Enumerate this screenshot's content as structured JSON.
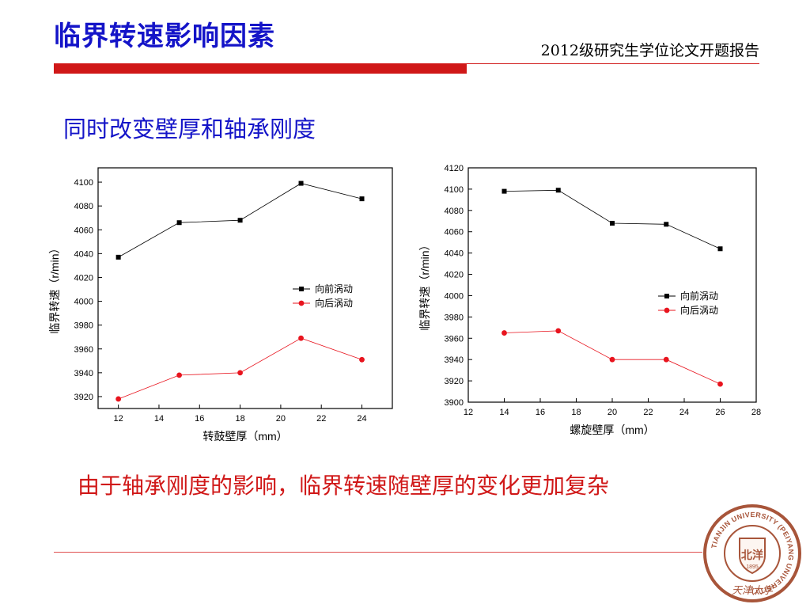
{
  "slide": {
    "title": "临界转速影响因素",
    "report_title": "2012级研究生学位论文开题报告",
    "section_heading": "同时改变壁厚和轴承刚度",
    "conclusion": "由于轴承刚度的影响，临界转速随壁厚的变化更加复杂"
  },
  "seal": {
    "outer_text": "TIANJIN UNIVERSITY (PEIYANG UNIVERSITY)",
    "center_text": "北洋",
    "year": "1895",
    "bottom_text": "天津大学",
    "color": "#a8553a"
  },
  "colors": {
    "title_blue": "#1414c8",
    "accent_red": "#d01818",
    "series_black": "#000000",
    "series_red": "#e8141e"
  },
  "chart_data": [
    {
      "type": "line",
      "xlabel": "转鼓壁厚（mm）",
      "ylabel": "临界转速（r/min）",
      "xlim": [
        11,
        25.5
      ],
      "ylim": [
        3910,
        4112
      ],
      "xticks": [
        12,
        14,
        16,
        18,
        20,
        22,
        24
      ],
      "yticks": [
        3920,
        3940,
        3960,
        3980,
        4000,
        4020,
        4040,
        4060,
        4080,
        4100
      ],
      "legend_position": "right",
      "series": [
        {
          "name": "向前涡动",
          "marker": "square",
          "color": "#000000",
          "x": [
            12,
            15,
            18,
            21,
            24
          ],
          "y": [
            4037,
            4066,
            4068,
            4099,
            4086
          ]
        },
        {
          "name": "向后涡动",
          "marker": "circle",
          "color": "#e8141e",
          "x": [
            12,
            15,
            18,
            21,
            24
          ],
          "y": [
            3918,
            3938,
            3940,
            3969,
            3951
          ]
        }
      ]
    },
    {
      "type": "line",
      "xlabel": "螺旋壁厚（mm）",
      "ylabel": "临界转速（r/min）",
      "xlim": [
        12,
        28
      ],
      "ylim": [
        3900,
        4120
      ],
      "xticks": [
        12,
        14,
        16,
        18,
        20,
        22,
        24,
        26,
        28
      ],
      "yticks": [
        3900,
        3920,
        3940,
        3960,
        3980,
        4000,
        4020,
        4040,
        4060,
        4080,
        4100,
        4120
      ],
      "legend_position": "right",
      "series": [
        {
          "name": "向前涡动",
          "marker": "square",
          "color": "#000000",
          "x": [
            14,
            17,
            20,
            23,
            26
          ],
          "y": [
            4098,
            4099,
            4068,
            4067,
            4044
          ]
        },
        {
          "name": "向后涡动",
          "marker": "circle",
          "color": "#e8141e",
          "x": [
            14,
            17,
            20,
            23,
            26
          ],
          "y": [
            3965,
            3967,
            3940,
            3940,
            3917
          ]
        }
      ]
    }
  ]
}
